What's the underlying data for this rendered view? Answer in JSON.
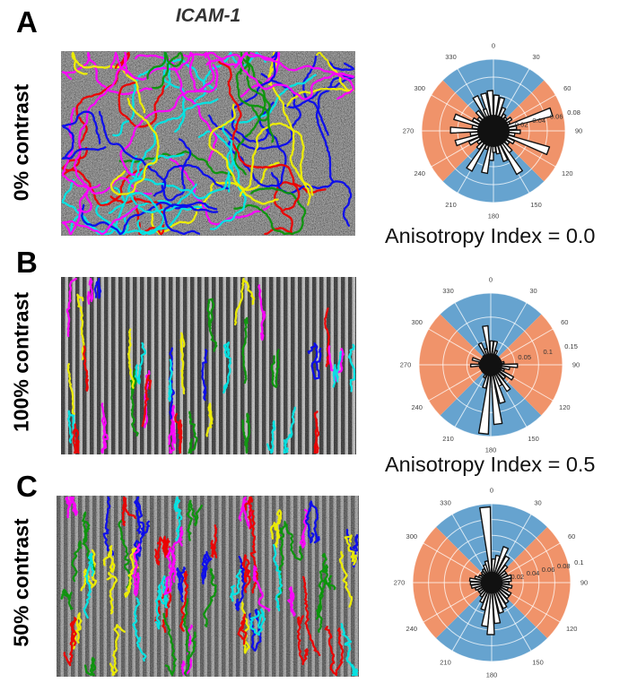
{
  "figure_title": "ICAM-1",
  "panels": [
    {
      "letter": "A",
      "row_label": "0% contrast",
      "anisotropy_label": "Anisotropy Index = 0.0",
      "micrograph": {
        "pattern": "speckle-noise",
        "seed": 11,
        "track_count": 52,
        "track_mode": "isotropic"
      }
    },
    {
      "letter": "B",
      "row_label": "100% contrast",
      "anisotropy_label": "Anisotropy Index = 0.5",
      "micrograph": {
        "pattern": "vertical-stripes-high-contrast",
        "seed": 23,
        "track_count": 38,
        "track_mode": "vertical"
      }
    },
    {
      "letter": "C",
      "row_label": "50% contrast",
      "micrograph": {
        "pattern": "vertical-stripes-mid-contrast",
        "seed": 37,
        "track_count": 66,
        "track_mode": "vertical"
      }
    }
  ],
  "track_colors": [
    "#ff00ff",
    "#00e6e6",
    "#0a0aee",
    "#0a960a",
    "#ee0000",
    "#f0f000"
  ],
  "style": {
    "sector_blue": "#66A3CF",
    "sector_orange": "#F0936A",
    "bar_fill": "#ffffff",
    "bar_stroke": "#111111",
    "grid_color": "#ffffff",
    "angle_label_color": "#444444",
    "rtick_label_color": "#333333"
  },
  "chart_data": [
    {
      "type": "polar-rose",
      "panel": "A",
      "condition": "0% contrast",
      "ligand": "ICAM-1",
      "anisotropy_index": 0.0,
      "angle_ticks": [
        0,
        30,
        60,
        90,
        120,
        150,
        180,
        210,
        240,
        270,
        300,
        330
      ],
      "r_tick_values": [
        0.02,
        0.04,
        0.06,
        0.08
      ],
      "r_tick_labels": [
        "0.02",
        "0.04",
        "0.06",
        "0.08"
      ],
      "rmax": 0.08,
      "sectors_blue_deg": [
        [
          315,
          45
        ],
        [
          135,
          225
        ]
      ],
      "sectors_orange_deg": [
        [
          45,
          135
        ],
        [
          225,
          315
        ]
      ],
      "center_blob_r": 0.018,
      "bars": [
        [
          345,
          0.043
        ],
        [
          355,
          0.045
        ],
        [
          5,
          0.04
        ],
        [
          15,
          0.038
        ],
        [
          25,
          0.028
        ],
        [
          35,
          0.022
        ],
        [
          45,
          0.02
        ],
        [
          55,
          0.024
        ],
        [
          63,
          0.02
        ],
        [
          72,
          0.068
        ],
        [
          82,
          0.026
        ],
        [
          92,
          0.03
        ],
        [
          100,
          0.024
        ],
        [
          110,
          0.065
        ],
        [
          120,
          0.026
        ],
        [
          130,
          0.022
        ],
        [
          140,
          0.03
        ],
        [
          148,
          0.055
        ],
        [
          158,
          0.036
        ],
        [
          168,
          0.026
        ],
        [
          178,
          0.024
        ],
        [
          184,
          0.033
        ],
        [
          192,
          0.048
        ],
        [
          202,
          0.022
        ],
        [
          212,
          0.051
        ],
        [
          222,
          0.026
        ],
        [
          232,
          0.022
        ],
        [
          242,
          0.03
        ],
        [
          252,
          0.044
        ],
        [
          262,
          0.026
        ],
        [
          271,
          0.048
        ],
        [
          281,
          0.024
        ],
        [
          290,
          0.046
        ],
        [
          300,
          0.026
        ],
        [
          310,
          0.022
        ],
        [
          320,
          0.028
        ],
        [
          332,
          0.043
        ],
        [
          338,
          0.026
        ]
      ]
    },
    {
      "type": "polar-rose",
      "panel": "B",
      "condition": "100% contrast",
      "anisotropy_index": 0.5,
      "angle_ticks": [
        0,
        30,
        60,
        90,
        120,
        150,
        180,
        210,
        240,
        270,
        300,
        330
      ],
      "r_tick_values": [
        0.05,
        0.1,
        0.15
      ],
      "r_tick_labels": [
        "0.05",
        "0.1",
        "0.15"
      ],
      "rmax": 0.15,
      "sectors_blue_deg": [
        [
          315,
          45
        ],
        [
          135,
          225
        ]
      ],
      "sectors_orange_deg": [
        [
          45,
          135
        ],
        [
          225,
          315
        ]
      ],
      "center_blob_r": 0.024,
      "bars": [
        [
          352,
          0.082
        ],
        [
          2,
          0.05
        ],
        [
          12,
          0.05
        ],
        [
          22,
          0.032
        ],
        [
          33,
          0.018
        ],
        [
          45,
          0.014
        ],
        [
          58,
          0.016
        ],
        [
          70,
          0.02
        ],
        [
          80,
          0.028
        ],
        [
          92,
          0.056
        ],
        [
          101,
          0.04
        ],
        [
          112,
          0.03
        ],
        [
          122,
          0.054
        ],
        [
          134,
          0.04
        ],
        [
          145,
          0.065
        ],
        [
          155,
          0.048
        ],
        [
          163,
          0.083
        ],
        [
          173,
          0.125
        ],
        [
          186,
          0.145
        ],
        [
          196,
          0.05
        ],
        [
          207,
          0.03
        ],
        [
          218,
          0.02
        ],
        [
          232,
          0.014
        ],
        [
          245,
          0.016
        ],
        [
          257,
          0.024
        ],
        [
          268,
          0.042
        ],
        [
          278,
          0.025
        ],
        [
          288,
          0.04
        ],
        [
          299,
          0.02
        ],
        [
          310,
          0.016
        ],
        [
          321,
          0.024
        ],
        [
          333,
          0.05
        ],
        [
          342,
          0.035
        ]
      ]
    },
    {
      "type": "polar-rose",
      "panel": "C",
      "condition": "50% contrast",
      "angle_ticks": [
        0,
        30,
        60,
        90,
        120,
        150,
        180,
        210,
        240,
        270,
        300,
        330
      ],
      "r_tick_values": [
        0.02,
        0.04,
        0.06,
        0.08,
        0.1
      ],
      "r_tick_labels": [
        "0.02",
        "0.04",
        "0.06",
        "0.08",
        "0.1"
      ],
      "rmax": 0.1,
      "sectors_blue_deg": [
        [
          315,
          45
        ],
        [
          135,
          225
        ]
      ],
      "sectors_orange_deg": [
        [
          45,
          135
        ],
        [
          225,
          315
        ]
      ],
      "center_blob_r": 0.014,
      "bars": [
        [
          355,
          0.096
        ],
        [
          5,
          0.03
        ],
        [
          13,
          0.035
        ],
        [
          22,
          0.048
        ],
        [
          32,
          0.038
        ],
        [
          42,
          0.028
        ],
        [
          52,
          0.022
        ],
        [
          62,
          0.022
        ],
        [
          72,
          0.026
        ],
        [
          82,
          0.025
        ],
        [
          92,
          0.022
        ],
        [
          102,
          0.026
        ],
        [
          112,
          0.022
        ],
        [
          122,
          0.028
        ],
        [
          132,
          0.028
        ],
        [
          142,
          0.032
        ],
        [
          152,
          0.036
        ],
        [
          162,
          0.04
        ],
        [
          172,
          0.052
        ],
        [
          181,
          0.066
        ],
        [
          189,
          0.056
        ],
        [
          198,
          0.036
        ],
        [
          208,
          0.028
        ],
        [
          218,
          0.022
        ],
        [
          228,
          0.02
        ],
        [
          238,
          0.02
        ],
        [
          248,
          0.022
        ],
        [
          258,
          0.026
        ],
        [
          268,
          0.027
        ],
        [
          278,
          0.028
        ],
        [
          288,
          0.022
        ],
        [
          298,
          0.018
        ],
        [
          308,
          0.016
        ],
        [
          318,
          0.018
        ],
        [
          328,
          0.02
        ],
        [
          338,
          0.024
        ],
        [
          346,
          0.028
        ]
      ]
    }
  ]
}
